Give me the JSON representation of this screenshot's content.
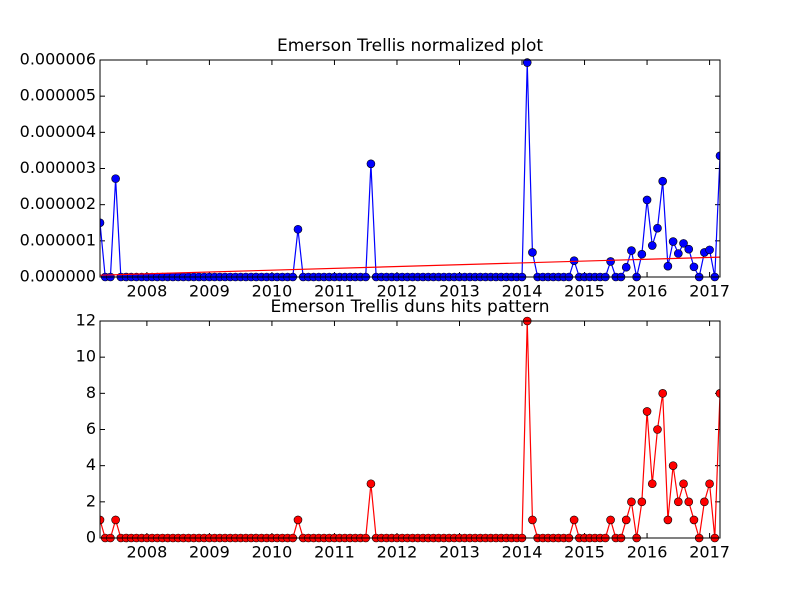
{
  "chart_data": [
    {
      "type": "line",
      "title": "Emerson Trellis normalized plot",
      "x": [
        "2007-04",
        "2007-05",
        "2007-06",
        "2007-07",
        "2007-08",
        "2007-09",
        "2007-10",
        "2007-11",
        "2007-12",
        "2008-01",
        "2008-02",
        "2008-03",
        "2008-04",
        "2008-05",
        "2008-06",
        "2008-07",
        "2008-08",
        "2008-09",
        "2008-10",
        "2008-11",
        "2008-12",
        "2009-01",
        "2009-02",
        "2009-03",
        "2009-04",
        "2009-05",
        "2009-06",
        "2009-07",
        "2009-08",
        "2009-09",
        "2009-10",
        "2009-11",
        "2009-12",
        "2010-01",
        "2010-02",
        "2010-03",
        "2010-04",
        "2010-05",
        "2010-06",
        "2010-07",
        "2010-08",
        "2010-09",
        "2010-10",
        "2010-11",
        "2010-12",
        "2011-01",
        "2011-02",
        "2011-03",
        "2011-04",
        "2011-05",
        "2011-06",
        "2011-07",
        "2011-08",
        "2011-09",
        "2011-10",
        "2011-11",
        "2011-12",
        "2012-01",
        "2012-02",
        "2012-03",
        "2012-04",
        "2012-05",
        "2012-06",
        "2012-07",
        "2012-08",
        "2012-09",
        "2012-10",
        "2012-11",
        "2012-12",
        "2013-01",
        "2013-02",
        "2013-03",
        "2013-04",
        "2013-05",
        "2013-06",
        "2013-07",
        "2013-08",
        "2013-09",
        "2013-10",
        "2013-11",
        "2013-12",
        "2014-01",
        "2014-02",
        "2014-03",
        "2014-04",
        "2014-05",
        "2014-06",
        "2014-07",
        "2014-08",
        "2014-09",
        "2014-10",
        "2014-11",
        "2014-12",
        "2015-01",
        "2015-02",
        "2015-03",
        "2015-04",
        "2015-05",
        "2015-06",
        "2015-07",
        "2015-08",
        "2015-09",
        "2015-10",
        "2015-11",
        "2015-12",
        "2016-01",
        "2016-02",
        "2016-03",
        "2016-04",
        "2016-05",
        "2016-06",
        "2016-07",
        "2016-08",
        "2016-09",
        "2016-10",
        "2016-11",
        "2016-12",
        "2017-01",
        "2017-02",
        "2017-03"
      ],
      "series": [
        {
          "color": "#0000ff",
          "marker": true,
          "values": [
            1.5e-06,
            0,
            0,
            2.72e-06,
            0,
            0,
            0,
            0,
            0,
            0,
            0,
            0,
            0,
            0,
            0,
            0,
            0,
            0,
            0,
            0,
            0,
            0,
            0,
            0,
            0,
            0,
            0,
            0,
            0,
            0,
            0,
            0,
            0,
            0,
            0,
            0,
            0,
            0,
            1.32e-06,
            0,
            0,
            0,
            0,
            0,
            0,
            0,
            0,
            0,
            0,
            0,
            0,
            0,
            3.13e-06,
            0,
            0,
            0,
            0,
            0,
            0,
            0,
            0,
            0,
            0,
            0,
            0,
            0,
            0,
            0,
            0,
            0,
            0,
            0,
            0,
            0,
            0,
            0,
            0,
            0,
            0,
            0,
            0,
            0,
            5.93e-06,
            6.8e-07,
            0,
            0,
            0,
            0,
            0,
            0,
            0,
            4.5e-07,
            0,
            0,
            0,
            0,
            0,
            0,
            4.3e-07,
            0,
            0,
            2.7e-07,
            7.3e-07,
            0,
            6.3e-07,
            2.13e-06,
            8.7e-07,
            1.35e-06,
            2.65e-06,
            3e-07,
            9.8e-07,
            6.5e-07,
            9.3e-07,
            7.7e-07,
            2.8e-07,
            0,
            6.8e-07,
            7.5e-07,
            0,
            3.35e-06
          ]
        },
        {
          "color": "#ff0000",
          "marker": false,
          "x": [
            "2007-04",
            "2017-03"
          ],
          "values": [
            5e-08,
            5.5e-07
          ]
        }
      ],
      "xlim": [
        "2007-04",
        "2017-03"
      ],
      "xticks": [
        2008,
        2009,
        2010,
        2011,
        2012,
        2013,
        2014,
        2015,
        2016,
        2017
      ],
      "ylim": [
        0,
        6e-06
      ],
      "yticks": [
        {
          "value": 0,
          "label": "0.000000"
        },
        {
          "value": 1e-06,
          "label": "0.000001"
        },
        {
          "value": 2e-06,
          "label": "0.000002"
        },
        {
          "value": 3e-06,
          "label": "0.000003"
        },
        {
          "value": 4e-06,
          "label": "0.000004"
        },
        {
          "value": 5e-06,
          "label": "0.000005"
        },
        {
          "value": 6e-06,
          "label": "0.000006"
        }
      ]
    },
    {
      "type": "line",
      "title": "Emerson Trellis duns hits pattern",
      "series": [
        {
          "color": "#ff0000",
          "marker": true,
          "values": [
            1,
            0,
            0,
            1,
            0,
            0,
            0,
            0,
            0,
            0,
            0,
            0,
            0,
            0,
            0,
            0,
            0,
            0,
            0,
            0,
            0,
            0,
            0,
            0,
            0,
            0,
            0,
            0,
            0,
            0,
            0,
            0,
            0,
            0,
            0,
            0,
            0,
            0,
            1,
            0,
            0,
            0,
            0,
            0,
            0,
            0,
            0,
            0,
            0,
            0,
            0,
            0,
            3,
            0,
            0,
            0,
            0,
            0,
            0,
            0,
            0,
            0,
            0,
            0,
            0,
            0,
            0,
            0,
            0,
            0,
            0,
            0,
            0,
            0,
            0,
            0,
            0,
            0,
            0,
            0,
            0,
            0,
            12,
            1,
            0,
            0,
            0,
            0,
            0,
            0,
            0,
            1,
            0,
            0,
            0,
            0,
            0,
            0,
            1,
            0,
            0,
            1,
            2,
            0,
            2,
            7,
            3,
            6,
            8,
            1,
            4,
            2,
            3,
            2,
            1,
            0,
            2,
            3,
            0,
            8
          ]
        }
      ],
      "xlim": [
        "2007-04",
        "2017-03"
      ],
      "xticks": [
        2008,
        2009,
        2010,
        2011,
        2012,
        2013,
        2014,
        2015,
        2016,
        2017
      ],
      "ylim": [
        0,
        12
      ],
      "yticks": [
        0,
        2,
        4,
        6,
        8,
        10,
        12
      ]
    }
  ]
}
